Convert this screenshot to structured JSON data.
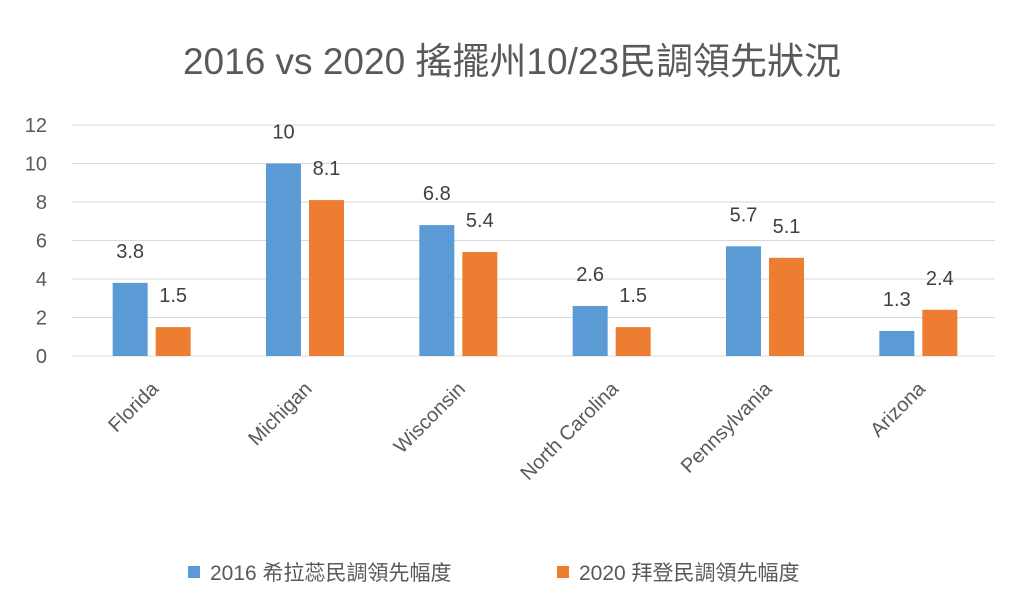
{
  "chart_data": {
    "type": "bar",
    "title": "2016 vs 2020 搖擺州10/23民調領先狀況",
    "categories": [
      "Florida",
      "Michigan",
      "Wisconsin",
      "North Carolina",
      "Pennsylvania",
      "Arizona"
    ],
    "series": [
      {
        "name": "2016 希拉蕊民調領先幅度",
        "values": [
          3.8,
          10,
          6.8,
          2.6,
          5.7,
          1.3
        ],
        "color": "#5B9BD5"
      },
      {
        "name": "2020 拜登民調領先幅度",
        "values": [
          1.5,
          8.1,
          5.4,
          1.5,
          5.1,
          2.4
        ],
        "color": "#ED7D31"
      }
    ],
    "ylim": [
      0,
      12
    ],
    "yticks": [
      0,
      2,
      4,
      6,
      8,
      10,
      12
    ],
    "grid": true,
    "legend": "bottom",
    "data_labels": true
  }
}
